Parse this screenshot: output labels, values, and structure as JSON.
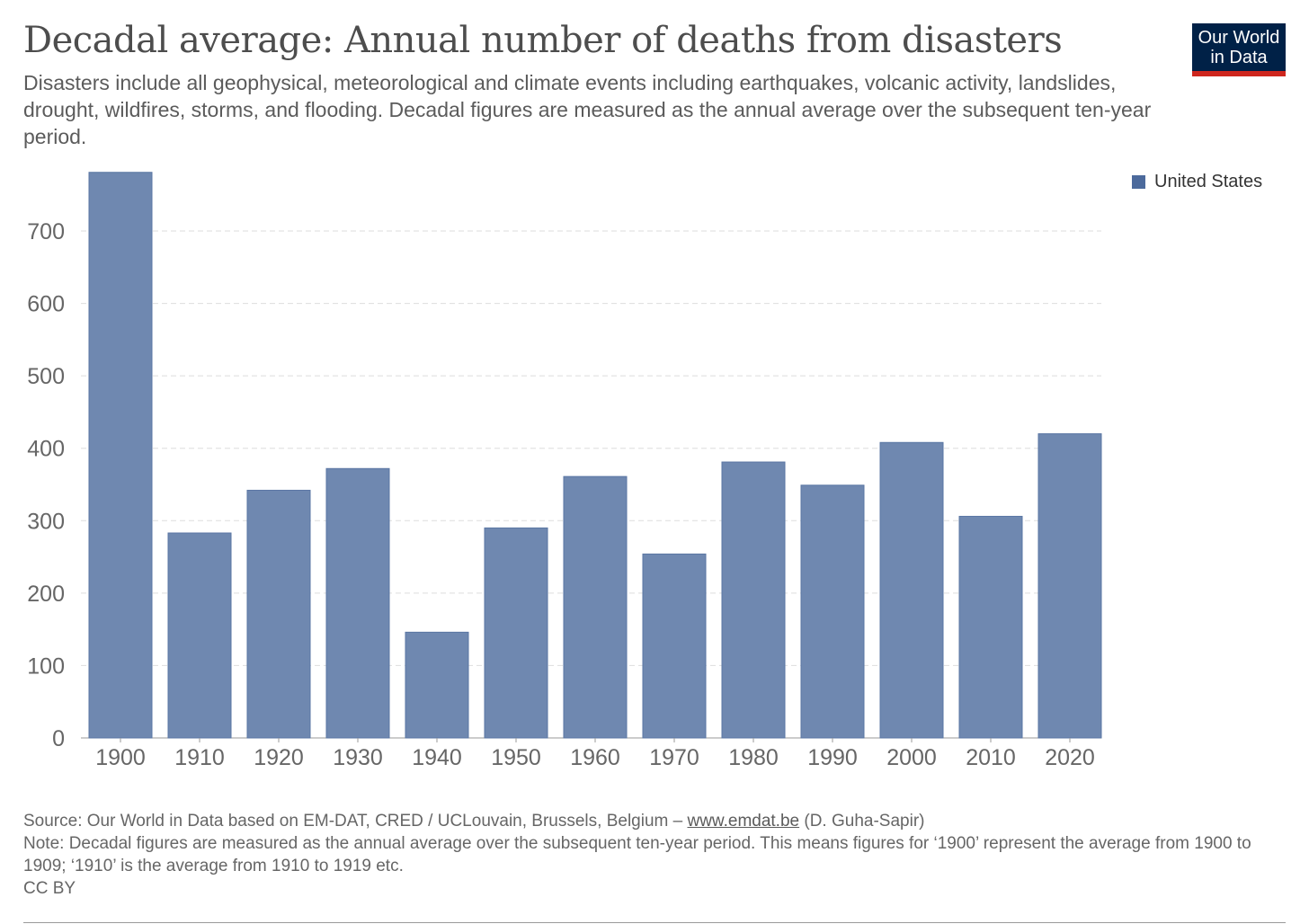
{
  "header": {
    "title": "Decadal average: Annual number of deaths from disasters",
    "subtitle": "Disasters include all geophysical, meteorological and climate events including earthquakes, volcanic activity, landslides, drought, wildfires, storms, and flooding. Decadal figures are measured as the annual average over the subsequent ten-year period.",
    "logo_line1": "Our World",
    "logo_line2": "in Data"
  },
  "legend": {
    "label": "United States",
    "color": "#4c6a9c"
  },
  "footer": {
    "source_prefix": "Source: Our World in Data based on EM-DAT, CRED / UCLouvain, Brussels, Belgium – ",
    "source_link": "www.emdat.be",
    "source_suffix": " (D. Guha-Sapir)",
    "note": "Note: Decadal figures are measured as the annual average over the subsequent ten-year period. This means figures for ‘1900’ represent the average from 1900 to 1909; ‘1910’ is the average from 1910 to 1919 etc.",
    "license": "CC BY"
  },
  "chart_data": {
    "type": "bar",
    "categories": [
      "1900",
      "1910",
      "1920",
      "1930",
      "1940",
      "1950",
      "1960",
      "1970",
      "1980",
      "1990",
      "2000",
      "2010",
      "2020"
    ],
    "series": [
      {
        "name": "United States",
        "values": [
          781,
          283,
          342,
          372,
          146,
          290,
          361,
          254,
          381,
          349,
          408,
          306,
          420
        ],
        "color": "#6f88b0",
        "stroke": "#5a76a3"
      }
    ],
    "y_ticks": [
      0,
      100,
      200,
      300,
      400,
      500,
      600,
      700
    ],
    "ylim": [
      0,
      781
    ],
    "grid": true,
    "legend_position": "top-right"
  }
}
